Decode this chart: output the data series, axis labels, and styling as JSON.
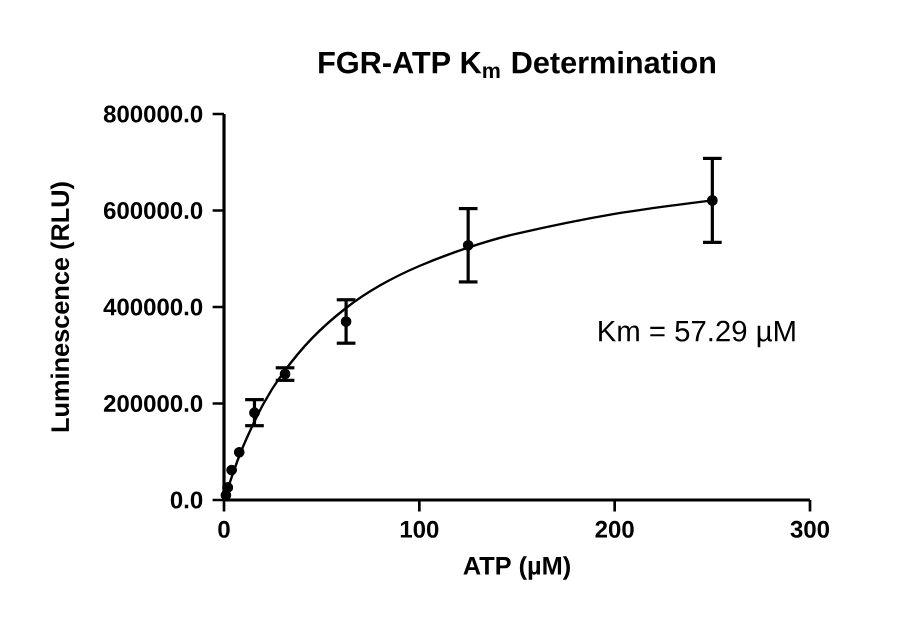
{
  "chart_data": {
    "type": "scatter",
    "title": "FGR-ATP K$_{m}$ Determination",
    "xlabel": "ATP (µM)",
    "ylabel": "Luminescence (RLU)",
    "annotations": [
      "Km = 57.29 µM"
    ],
    "xlim": [
      0,
      300
    ],
    "xticks": [
      0,
      100,
      200,
      300
    ],
    "ylim": [
      0,
      800000
    ],
    "yticks": [
      {
        "value": 0,
        "label": "0.0"
      },
      {
        "value": 200000,
        "label": "200000.0"
      },
      {
        "value": 400000,
        "label": "400000.0"
      },
      {
        "value": 600000,
        "label": "600000.0"
      },
      {
        "value": 800000,
        "label": "800000.0"
      }
    ],
    "series": [
      {
        "marker": "circle",
        "color": "#000000",
        "x": [
          0.98,
          1.95,
          3.9,
          7.8,
          15.6,
          31.25,
          62.5,
          125,
          250
        ],
        "values": [
          10000,
          26000,
          62000,
          99000,
          181000,
          261000,
          370000,
          528000,
          621000
        ],
        "errors": [
          null,
          null,
          null,
          null,
          27000,
          13000,
          45000,
          76000,
          87000
        ]
      },
      {
        "type": "line",
        "marker": "none",
        "color": "#000000",
        "x": [
          0,
          5,
          10,
          20,
          30,
          45,
          62.5,
          80,
          100,
          125,
          150,
          200,
          250
        ],
        "values": [
          0,
          60000,
          113000,
          198000,
          262000,
          335000,
          398000,
          445000,
          485000,
          523000,
          552000,
          593000,
          621000
        ]
      }
    ]
  }
}
